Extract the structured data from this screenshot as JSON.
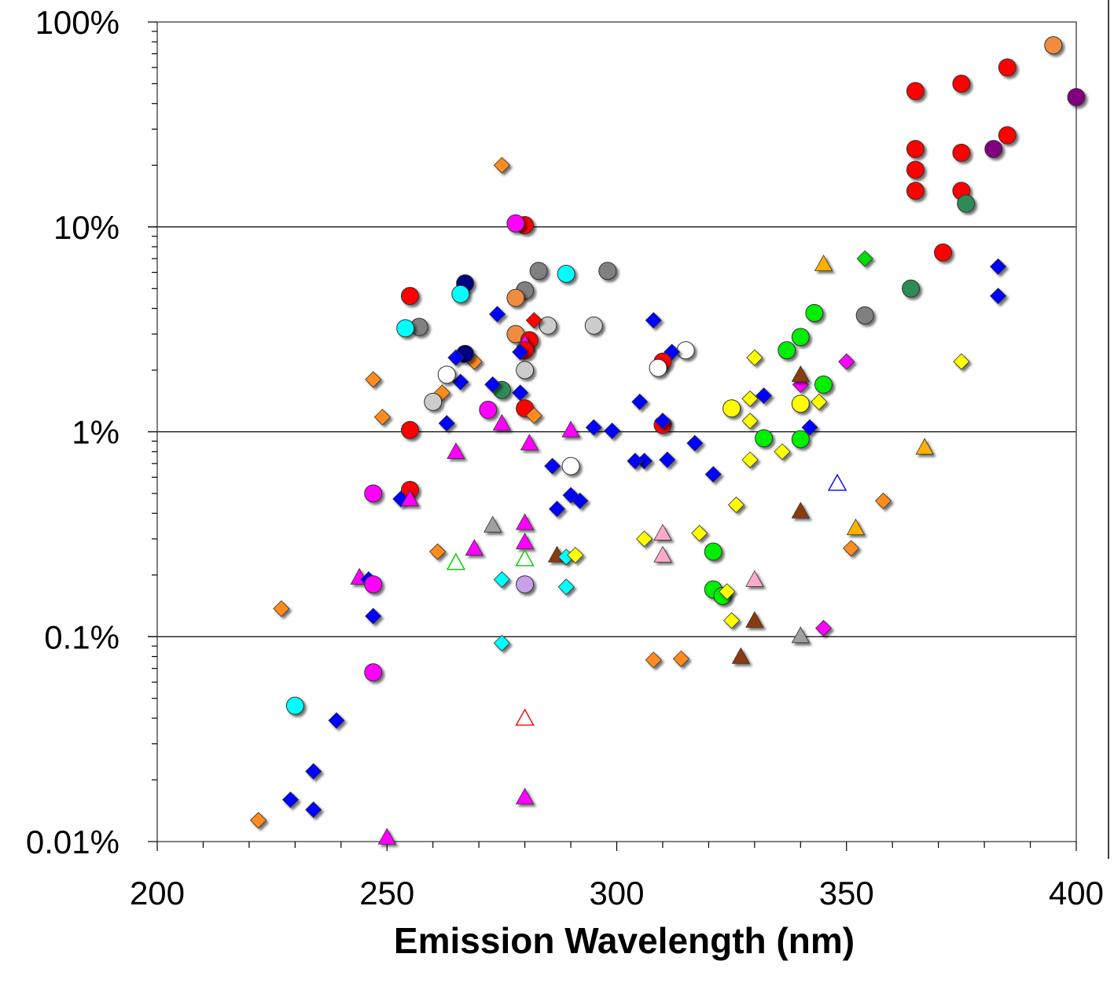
{
  "chart_data": {
    "type": "scatter",
    "title": "",
    "xlabel": "Emission Wavelength (nm)",
    "ylabel": "",
    "xlim": [
      200,
      400
    ],
    "ylim": [
      0.01,
      100
    ],
    "y_scale": "log",
    "x_ticks": [
      "200",
      "250",
      "300",
      "350",
      "400"
    ],
    "y_ticks": [
      "0.01%",
      "0.1%",
      "1%",
      "10%",
      "100%"
    ],
    "grid": "horizontal major lines",
    "legend": "none",
    "points": [
      {
        "x": 365,
        "y": 46,
        "shape": "circle",
        "color": "#ff0000"
      },
      {
        "x": 375,
        "y": 50,
        "shape": "circle",
        "color": "#ff0000"
      },
      {
        "x": 385,
        "y": 60,
        "shape": "circle",
        "color": "#ff0000"
      },
      {
        "x": 395,
        "y": 77,
        "shape": "circle",
        "color": "#f08c40"
      },
      {
        "x": 400,
        "y": 43,
        "shape": "circle",
        "color": "#800080"
      },
      {
        "x": 365,
        "y": 24,
        "shape": "circle",
        "color": "#ff0000"
      },
      {
        "x": 375,
        "y": 23,
        "shape": "circle",
        "color": "#ff0000"
      },
      {
        "x": 382,
        "y": 24,
        "shape": "circle",
        "color": "#800080"
      },
      {
        "x": 385,
        "y": 28,
        "shape": "circle",
        "color": "#ff0000"
      },
      {
        "x": 365,
        "y": 19,
        "shape": "circle",
        "color": "#ff0000"
      },
      {
        "x": 365,
        "y": 15,
        "shape": "circle",
        "color": "#ff0000"
      },
      {
        "x": 375,
        "y": 15,
        "shape": "circle",
        "color": "#ff0000"
      },
      {
        "x": 376,
        "y": 13,
        "shape": "circle",
        "color": "#2e8b57"
      },
      {
        "x": 371,
        "y": 7.5,
        "shape": "circle",
        "color": "#ff0000"
      },
      {
        "x": 364,
        "y": 5,
        "shape": "circle",
        "color": "#2e8b57"
      },
      {
        "x": 383,
        "y": 6.4,
        "shape": "diamond",
        "color": "#0000ff"
      },
      {
        "x": 383,
        "y": 4.6,
        "shape": "diamond",
        "color": "#0000ff"
      },
      {
        "x": 354,
        "y": 3.7,
        "shape": "circle",
        "color": "#808080"
      },
      {
        "x": 354,
        "y": 7,
        "shape": "diamond",
        "color": "#00dd00"
      },
      {
        "x": 345,
        "y": 6.6,
        "shape": "triangle",
        "color": "#ffb000"
      },
      {
        "x": 343,
        "y": 3.8,
        "shape": "circle",
        "color": "#00ee00"
      },
      {
        "x": 340,
        "y": 2.9,
        "shape": "circle",
        "color": "#00ee00"
      },
      {
        "x": 337,
        "y": 2.5,
        "shape": "circle",
        "color": "#00ee00"
      },
      {
        "x": 345,
        "y": 1.7,
        "shape": "circle",
        "color": "#00ee00"
      },
      {
        "x": 340,
        "y": 1.7,
        "shape": "diamond",
        "color": "#ff00ff"
      },
      {
        "x": 340,
        "y": 1.9,
        "shape": "triangle",
        "color": "#8b3a0f"
      },
      {
        "x": 350,
        "y": 2.2,
        "shape": "diamond",
        "color": "#ff00ff"
      },
      {
        "x": 375,
        "y": 2.2,
        "shape": "diamond",
        "color": "#ffff00"
      },
      {
        "x": 330,
        "y": 2.3,
        "shape": "diamond",
        "color": "#ffff00"
      },
      {
        "x": 344,
        "y": 1.4,
        "shape": "diamond",
        "color": "#ffff00"
      },
      {
        "x": 340,
        "y": 1.37,
        "shape": "circle",
        "color": "#ffff00"
      },
      {
        "x": 332,
        "y": 1.5,
        "shape": "diamond",
        "color": "#0000ff"
      },
      {
        "x": 329,
        "y": 1.45,
        "shape": "diamond",
        "color": "#ffff00"
      },
      {
        "x": 325,
        "y": 1.3,
        "shape": "circle",
        "color": "#ffff00"
      },
      {
        "x": 329,
        "y": 1.13,
        "shape": "diamond",
        "color": "#ffff00"
      },
      {
        "x": 342,
        "y": 1.05,
        "shape": "diamond",
        "color": "#0000ff"
      },
      {
        "x": 332,
        "y": 0.93,
        "shape": "circle",
        "color": "#00ee00"
      },
      {
        "x": 340,
        "y": 0.92,
        "shape": "circle",
        "color": "#00ee00"
      },
      {
        "x": 336,
        "y": 0.8,
        "shape": "diamond",
        "color": "#ffff00"
      },
      {
        "x": 329,
        "y": 0.73,
        "shape": "diamond",
        "color": "#ffff00"
      },
      {
        "x": 367,
        "y": 0.84,
        "shape": "triangle",
        "color": "#ffb000"
      },
      {
        "x": 348,
        "y": 0.56,
        "shape": "triangle-open",
        "color": "#0000ff"
      },
      {
        "x": 358,
        "y": 0.46,
        "shape": "diamond",
        "color": "#ff8c1a"
      },
      {
        "x": 340,
        "y": 0.41,
        "shape": "triangle",
        "color": "#8b3a0f"
      },
      {
        "x": 326,
        "y": 0.44,
        "shape": "diamond",
        "color": "#ffff00"
      },
      {
        "x": 352,
        "y": 0.34,
        "shape": "triangle",
        "color": "#ffb000"
      },
      {
        "x": 351,
        "y": 0.27,
        "shape": "diamond",
        "color": "#ff8c1a"
      },
      {
        "x": 318,
        "y": 0.32,
        "shape": "diamond",
        "color": "#ffff00"
      },
      {
        "x": 321,
        "y": 0.26,
        "shape": "circle",
        "color": "#00ee00"
      },
      {
        "x": 310,
        "y": 0.32,
        "shape": "triangle",
        "color": "#ffaacc"
      },
      {
        "x": 306,
        "y": 0.3,
        "shape": "diamond",
        "color": "#ffff00"
      },
      {
        "x": 310,
        "y": 0.25,
        "shape": "triangle",
        "color": "#ffaacc"
      },
      {
        "x": 330,
        "y": 0.19,
        "shape": "triangle",
        "color": "#ffaacc"
      },
      {
        "x": 321,
        "y": 0.17,
        "shape": "circle",
        "color": "#00ee00"
      },
      {
        "x": 323,
        "y": 0.158,
        "shape": "circle",
        "color": "#00ee00"
      },
      {
        "x": 324,
        "y": 0.166,
        "shape": "diamond",
        "color": "#ffff00"
      },
      {
        "x": 325,
        "y": 0.12,
        "shape": "diamond",
        "color": "#ffff00"
      },
      {
        "x": 330,
        "y": 0.12,
        "shape": "triangle",
        "color": "#8b3a0f"
      },
      {
        "x": 340,
        "y": 0.101,
        "shape": "triangle",
        "color": "#a0a0a0"
      },
      {
        "x": 345,
        "y": 0.11,
        "shape": "diamond",
        "color": "#ff00ff"
      },
      {
        "x": 327,
        "y": 0.08,
        "shape": "triangle",
        "color": "#8b3a0f"
      },
      {
        "x": 308,
        "y": 0.077,
        "shape": "diamond",
        "color": "#ff8c1a"
      },
      {
        "x": 314,
        "y": 0.078,
        "shape": "diamond",
        "color": "#ff8c1a"
      },
      {
        "x": 321,
        "y": 0.62,
        "shape": "diamond",
        "color": "#0000ff"
      },
      {
        "x": 317,
        "y": 0.88,
        "shape": "diamond",
        "color": "#0000ff"
      },
      {
        "x": 311,
        "y": 0.73,
        "shape": "diamond",
        "color": "#0000ff"
      },
      {
        "x": 306,
        "y": 0.72,
        "shape": "diamond",
        "color": "#0000ff"
      },
      {
        "x": 304,
        "y": 0.72,
        "shape": "diamond",
        "color": "#0000ff"
      },
      {
        "x": 310,
        "y": 1.08,
        "shape": "circle",
        "color": "#ff0000"
      },
      {
        "x": 310,
        "y": 1.13,
        "shape": "diamond",
        "color": "#0000ff"
      },
      {
        "x": 305,
        "y": 1.4,
        "shape": "diamond",
        "color": "#0000ff"
      },
      {
        "x": 299,
        "y": 1.01,
        "shape": "diamond",
        "color": "#0000ff"
      },
      {
        "x": 295,
        "y": 1.05,
        "shape": "diamond",
        "color": "#0000ff"
      },
      {
        "x": 315,
        "y": 2.5,
        "shape": "circle",
        "color": "#ffffff"
      },
      {
        "x": 312,
        "y": 2.45,
        "shape": "diamond",
        "color": "#0000ff"
      },
      {
        "x": 310,
        "y": 2.2,
        "shape": "circle",
        "color": "#ff0000"
      },
      {
        "x": 309,
        "y": 2.05,
        "shape": "circle",
        "color": "#ffffff"
      },
      {
        "x": 308,
        "y": 3.5,
        "shape": "diamond",
        "color": "#0000ff"
      },
      {
        "x": 298,
        "y": 6.1,
        "shape": "circle",
        "color": "#808080"
      },
      {
        "x": 295,
        "y": 3.3,
        "shape": "circle",
        "color": "#cccccc"
      },
      {
        "x": 289,
        "y": 5.9,
        "shape": "circle",
        "color": "#00ffff"
      },
      {
        "x": 283,
        "y": 6.1,
        "shape": "circle",
        "color": "#808080"
      },
      {
        "x": 285,
        "y": 3.3,
        "shape": "circle",
        "color": "#cccccc"
      },
      {
        "x": 280,
        "y": 10.2,
        "shape": "circle",
        "color": "#ff0000"
      },
      {
        "x": 278,
        "y": 10.4,
        "shape": "circle",
        "color": "#ff00ff"
      },
      {
        "x": 275,
        "y": 20,
        "shape": "diamond",
        "color": "#ff8c1a"
      },
      {
        "x": 280,
        "y": 4.9,
        "shape": "circle",
        "color": "#808080"
      },
      {
        "x": 278,
        "y": 4.5,
        "shape": "circle",
        "color": "#f08c40"
      },
      {
        "x": 282,
        "y": 3.5,
        "shape": "diamond",
        "color": "#ff0000"
      },
      {
        "x": 278,
        "y": 3.0,
        "shape": "circle",
        "color": "#f08c40"
      },
      {
        "x": 281,
        "y": 2.8,
        "shape": "circle",
        "color": "#ff0000"
      },
      {
        "x": 280,
        "y": 2.7,
        "shape": "triangle",
        "color": "#ff00ff"
      },
      {
        "x": 280,
        "y": 2.5,
        "shape": "circle",
        "color": "#ff0000"
      },
      {
        "x": 279,
        "y": 2.45,
        "shape": "diamond",
        "color": "#0000ff"
      },
      {
        "x": 274,
        "y": 3.75,
        "shape": "diamond",
        "color": "#0000ff"
      },
      {
        "x": 280,
        "y": 2.0,
        "shape": "circle",
        "color": "#cccccc"
      },
      {
        "x": 279,
        "y": 1.55,
        "shape": "diamond",
        "color": "#0000ff"
      },
      {
        "x": 275,
        "y": 1.6,
        "shape": "circle",
        "color": "#2e8b57"
      },
      {
        "x": 273,
        "y": 1.7,
        "shape": "diamond",
        "color": "#0000ff"
      },
      {
        "x": 280,
        "y": 1.3,
        "shape": "circle",
        "color": "#ff0000"
      },
      {
        "x": 282,
        "y": 1.2,
        "shape": "diamond",
        "color": "#ff8c1a"
      },
      {
        "x": 272,
        "y": 1.28,
        "shape": "circle",
        "color": "#ff00ff"
      },
      {
        "x": 275,
        "y": 1.1,
        "shape": "triangle",
        "color": "#ff00ff"
      },
      {
        "x": 269,
        "y": 2.2,
        "shape": "diamond",
        "color": "#ff8c1a"
      },
      {
        "x": 267,
        "y": 2.4,
        "shape": "circle",
        "color": "#000080"
      },
      {
        "x": 265,
        "y": 2.3,
        "shape": "diamond",
        "color": "#0000ff"
      },
      {
        "x": 266,
        "y": 1.75,
        "shape": "diamond",
        "color": "#0000ff"
      },
      {
        "x": 267,
        "y": 5.3,
        "shape": "circle",
        "color": "#000080"
      },
      {
        "x": 266,
        "y": 4.7,
        "shape": "circle",
        "color": "#00ffff"
      },
      {
        "x": 263,
        "y": 1.9,
        "shape": "circle",
        "color": "#ffffff"
      },
      {
        "x": 262,
        "y": 1.55,
        "shape": "diamond",
        "color": "#ff8c1a"
      },
      {
        "x": 260,
        "y": 1.4,
        "shape": "circle",
        "color": "#cccccc"
      },
      {
        "x": 263,
        "y": 1.1,
        "shape": "diamond",
        "color": "#0000ff"
      },
      {
        "x": 257,
        "y": 3.25,
        "shape": "circle",
        "color": "#808080"
      },
      {
        "x": 254,
        "y": 3.2,
        "shape": "circle",
        "color": "#00ffff"
      },
      {
        "x": 255,
        "y": 4.6,
        "shape": "circle",
        "color": "#ff0000"
      },
      {
        "x": 247,
        "y": 1.8,
        "shape": "diamond",
        "color": "#ff8c1a"
      },
      {
        "x": 249,
        "y": 1.18,
        "shape": "diamond",
        "color": "#ff8c1a"
      },
      {
        "x": 255,
        "y": 1.02,
        "shape": "circle",
        "color": "#ff0000"
      },
      {
        "x": 281,
        "y": 0.88,
        "shape": "triangle",
        "color": "#ff00ff"
      },
      {
        "x": 265,
        "y": 0.8,
        "shape": "triangle",
        "color": "#ff00ff"
      },
      {
        "x": 290,
        "y": 1.02,
        "shape": "triangle",
        "color": "#ff00ff"
      },
      {
        "x": 286,
        "y": 0.68,
        "shape": "diamond",
        "color": "#0000ff"
      },
      {
        "x": 290,
        "y": 0.68,
        "shape": "circle",
        "color": "#ffffff"
      },
      {
        "x": 290,
        "y": 0.49,
        "shape": "diamond",
        "color": "#0000ff"
      },
      {
        "x": 292,
        "y": 0.46,
        "shape": "diamond",
        "color": "#0000ff"
      },
      {
        "x": 287,
        "y": 0.42,
        "shape": "diamond",
        "color": "#0000ff"
      },
      {
        "x": 255,
        "y": 0.52,
        "shape": "circle",
        "color": "#ff0000"
      },
      {
        "x": 247,
        "y": 0.5,
        "shape": "circle",
        "color": "#ff00ff"
      },
      {
        "x": 253,
        "y": 0.47,
        "shape": "diamond",
        "color": "#0000ff"
      },
      {
        "x": 255,
        "y": 0.47,
        "shape": "triangle",
        "color": "#ff00ff"
      },
      {
        "x": 273,
        "y": 0.35,
        "shape": "triangle",
        "color": "#a0a0a0"
      },
      {
        "x": 280,
        "y": 0.36,
        "shape": "triangle",
        "color": "#ff00ff"
      },
      {
        "x": 280,
        "y": 0.29,
        "shape": "triangle",
        "color": "#ff00ff"
      },
      {
        "x": 269,
        "y": 0.27,
        "shape": "triangle",
        "color": "#ff00ff"
      },
      {
        "x": 261,
        "y": 0.26,
        "shape": "diamond",
        "color": "#ff8c1a"
      },
      {
        "x": 265,
        "y": 0.23,
        "shape": "triangle-open",
        "color": "#00cc00"
      },
      {
        "x": 280,
        "y": 0.24,
        "shape": "triangle-open",
        "color": "#00cc00"
      },
      {
        "x": 287,
        "y": 0.25,
        "shape": "triangle",
        "color": "#8b3a0f"
      },
      {
        "x": 289,
        "y": 0.245,
        "shape": "diamond",
        "color": "#00ffff"
      },
      {
        "x": 291,
        "y": 0.25,
        "shape": "diamond",
        "color": "#ffff00"
      },
      {
        "x": 275,
        "y": 0.19,
        "shape": "diamond",
        "color": "#00ffff"
      },
      {
        "x": 280,
        "y": 0.18,
        "shape": "circle",
        "color": "#c8a0e8"
      },
      {
        "x": 289,
        "y": 0.175,
        "shape": "diamond",
        "color": "#00ffff"
      },
      {
        "x": 244,
        "y": 0.195,
        "shape": "triangle",
        "color": "#ff00ff"
      },
      {
        "x": 246,
        "y": 0.19,
        "shape": "diamond",
        "color": "#0000ff"
      },
      {
        "x": 247,
        "y": 0.18,
        "shape": "circle",
        "color": "#ff00ff"
      },
      {
        "x": 227,
        "y": 0.137,
        "shape": "diamond",
        "color": "#ff8c1a"
      },
      {
        "x": 247,
        "y": 0.126,
        "shape": "diamond",
        "color": "#0000ff"
      },
      {
        "x": 275,
        "y": 0.093,
        "shape": "diamond",
        "color": "#00ffff"
      },
      {
        "x": 247,
        "y": 0.067,
        "shape": "circle",
        "color": "#ff00ff"
      },
      {
        "x": 230,
        "y": 0.046,
        "shape": "circle",
        "color": "#00ffff"
      },
      {
        "x": 239,
        "y": 0.039,
        "shape": "diamond",
        "color": "#0000ff"
      },
      {
        "x": 280,
        "y": 0.04,
        "shape": "triangle-open",
        "color": "#ff0000"
      },
      {
        "x": 234,
        "y": 0.022,
        "shape": "diamond",
        "color": "#0000ff"
      },
      {
        "x": 229,
        "y": 0.016,
        "shape": "diamond",
        "color": "#0000ff"
      },
      {
        "x": 234,
        "y": 0.0143,
        "shape": "diamond",
        "color": "#0000ff"
      },
      {
        "x": 280,
        "y": 0.0165,
        "shape": "triangle",
        "color": "#ff00ff"
      },
      {
        "x": 222,
        "y": 0.0127,
        "shape": "diamond",
        "color": "#ff8c1a"
      },
      {
        "x": 250,
        "y": 0.0105,
        "shape": "triangle",
        "color": "#ff00ff"
      }
    ]
  }
}
